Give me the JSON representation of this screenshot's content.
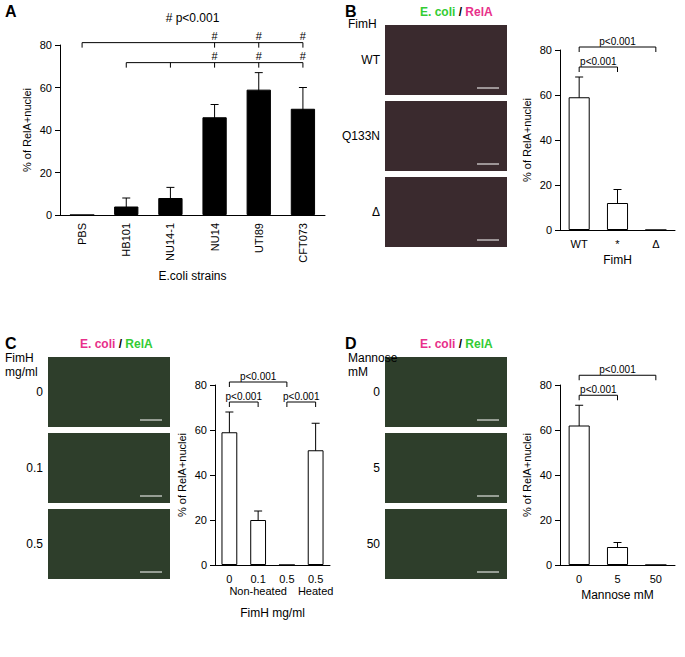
{
  "chart_data": [
    {
      "panel_label": "A",
      "type": "bar",
      "categories": [
        "PBS",
        "HB101",
        "NU14-1",
        "NU14",
        "UTI89",
        "CFT073"
      ],
      "values": [
        0,
        4,
        8,
        46,
        59,
        50
      ],
      "errors": [
        0,
        4,
        5,
        6,
        8,
        10
      ],
      "color": "#000000",
      "y_label": "% of RelA+nuclei",
      "x_label": "E.coli strains",
      "ylim": [
        0,
        80
      ],
      "yticks": [
        0,
        20,
        40,
        60,
        80
      ],
      "grid": false,
      "annotation": "# p<0.001",
      "comparisons": [
        {
          "from": [
            1,
            2
          ],
          "to": [
            3,
            4,
            5
          ],
          "label": "#"
        },
        {
          "from": [
            0
          ],
          "to": [
            3,
            4,
            5
          ],
          "label": "#"
        }
      ]
    },
    {
      "panel_label": "B",
      "type": "bar",
      "categories": [
        "WT",
        "*",
        "Δ"
      ],
      "values": [
        59,
        12,
        0
      ],
      "errors": [
        9,
        6,
        0
      ],
      "color": "#ffffff",
      "y_label": "% of RelA+nuclei",
      "x_label": "FimH",
      "ylim": [
        0,
        80
      ],
      "yticks": [
        0,
        20,
        40,
        60,
        80
      ],
      "grid": false,
      "images": {
        "header": [
          {
            "text": "E. coli",
            "color": "#33cc33"
          },
          {
            "text": " / ",
            "color": "#000000"
          },
          {
            "text": "RelA",
            "color": "#e8308a"
          }
        ],
        "title": [
          "FimH"
        ],
        "rows": [
          "WT",
          "Q133N",
          "Δ"
        ]
      },
      "comparisons": [
        {
          "from": [
            0
          ],
          "to": [
            1
          ],
          "label": "p<0.001"
        },
        {
          "from": [
            0
          ],
          "to": [
            2
          ],
          "label": "p<0.001"
        }
      ]
    },
    {
      "panel_label": "C",
      "type": "bar",
      "categories": [
        "0",
        "0.1",
        "0.5",
        "0.5"
      ],
      "values": [
        59,
        20,
        0,
        51
      ],
      "errors": [
        9,
        4,
        0,
        12
      ],
      "color": "#ffffff",
      "y_label": "% of RelA+nuclei",
      "x_label": "FimH mg/ml",
      "ylim": [
        0,
        80
      ],
      "yticks": [
        0,
        20,
        40,
        60,
        80
      ],
      "grid": false,
      "groups": [
        {
          "label": "Non-heated",
          "from": 0,
          "to": 2
        },
        {
          "label": "Heated",
          "from": 3,
          "to": 3
        }
      ],
      "images": {
        "header": [
          {
            "text": "E. coli",
            "color": "#e8308a"
          },
          {
            "text": " / ",
            "color": "#000000"
          },
          {
            "text": "RelA",
            "color": "#33cc33"
          }
        ],
        "title": [
          "FimH",
          "mg/ml"
        ],
        "rows": [
          "0",
          "0.1",
          "0.5"
        ]
      },
      "comparisons": [
        {
          "from": [
            0
          ],
          "to": [
            1
          ],
          "label": "p<0.001"
        },
        {
          "from": [
            2
          ],
          "to": [
            3
          ],
          "label": "p<0.001"
        },
        {
          "from": [
            0
          ],
          "to": [
            2
          ],
          "label": "p<0.001"
        }
      ]
    },
    {
      "panel_label": "D",
      "type": "bar",
      "categories": [
        "0",
        "5",
        "50"
      ],
      "values": [
        62,
        8,
        0
      ],
      "errors": [
        9,
        2,
        0
      ],
      "color": "#ffffff",
      "y_label": "% of RelA+nuclei",
      "x_label": "Mannose mM",
      "ylim": [
        0,
        80
      ],
      "yticks": [
        0,
        20,
        40,
        60,
        80
      ],
      "grid": false,
      "images": {
        "header": [
          {
            "text": "E. coli",
            "color": "#e8308a"
          },
          {
            "text": " / ",
            "color": "#000000"
          },
          {
            "text": "RelA",
            "color": "#33cc33"
          }
        ],
        "title": [
          "Mannose",
          "mM"
        ],
        "rows": [
          "0",
          "5",
          "50"
        ]
      },
      "comparisons": [
        {
          "from": [
            0
          ],
          "to": [
            1
          ],
          "label": "p<0.001"
        },
        {
          "from": [
            0
          ],
          "to": [
            2
          ],
          "label": "p<0.001"
        }
      ]
    }
  ]
}
